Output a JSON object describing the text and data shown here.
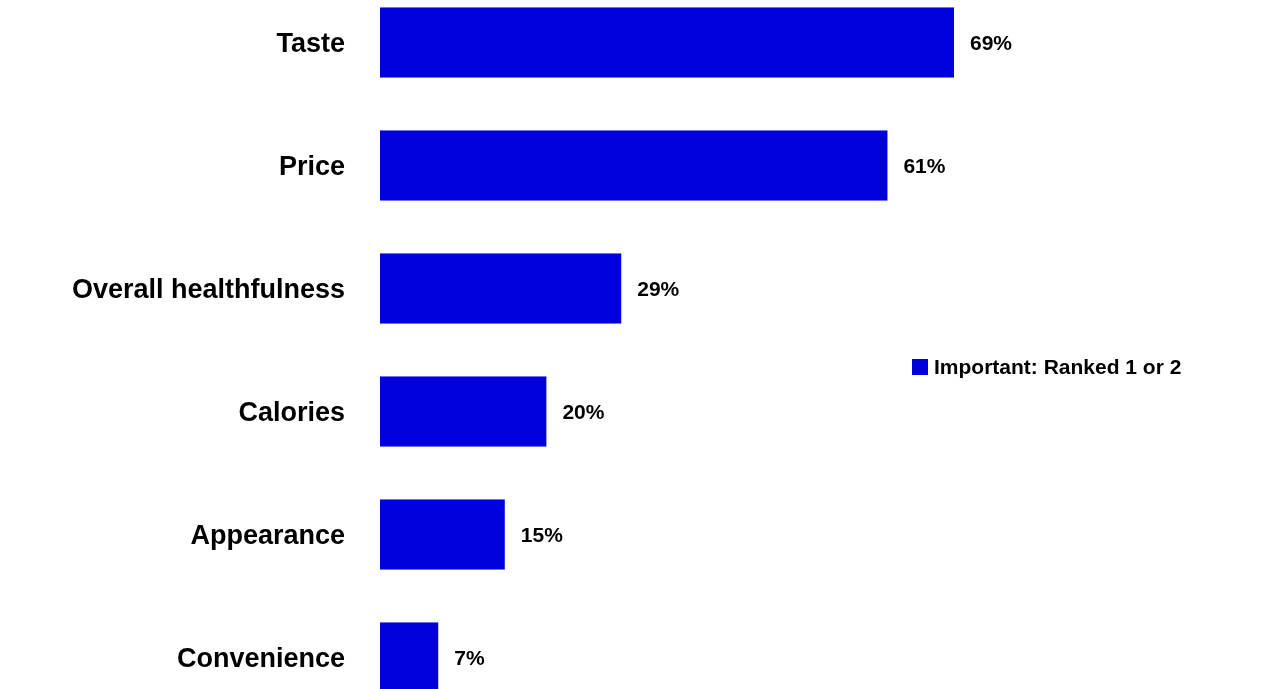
{
  "chart_data": {
    "type": "bar",
    "orientation": "horizontal",
    "tick_labels": "y",
    "legend": "right",
    "categories": [
      "Taste",
      "Price",
      "Overall healthfulness",
      "Calories",
      "Appearance",
      "Convenience"
    ],
    "series": [
      {
        "name": "Important: Ranked 1 or 2",
        "color": "#0000dd",
        "values": [
          69,
          61,
          29,
          20,
          15,
          7
        ],
        "value_labels": [
          "69%",
          "61%",
          "29%",
          "20%",
          "15%",
          "7%"
        ]
      }
    ]
  }
}
